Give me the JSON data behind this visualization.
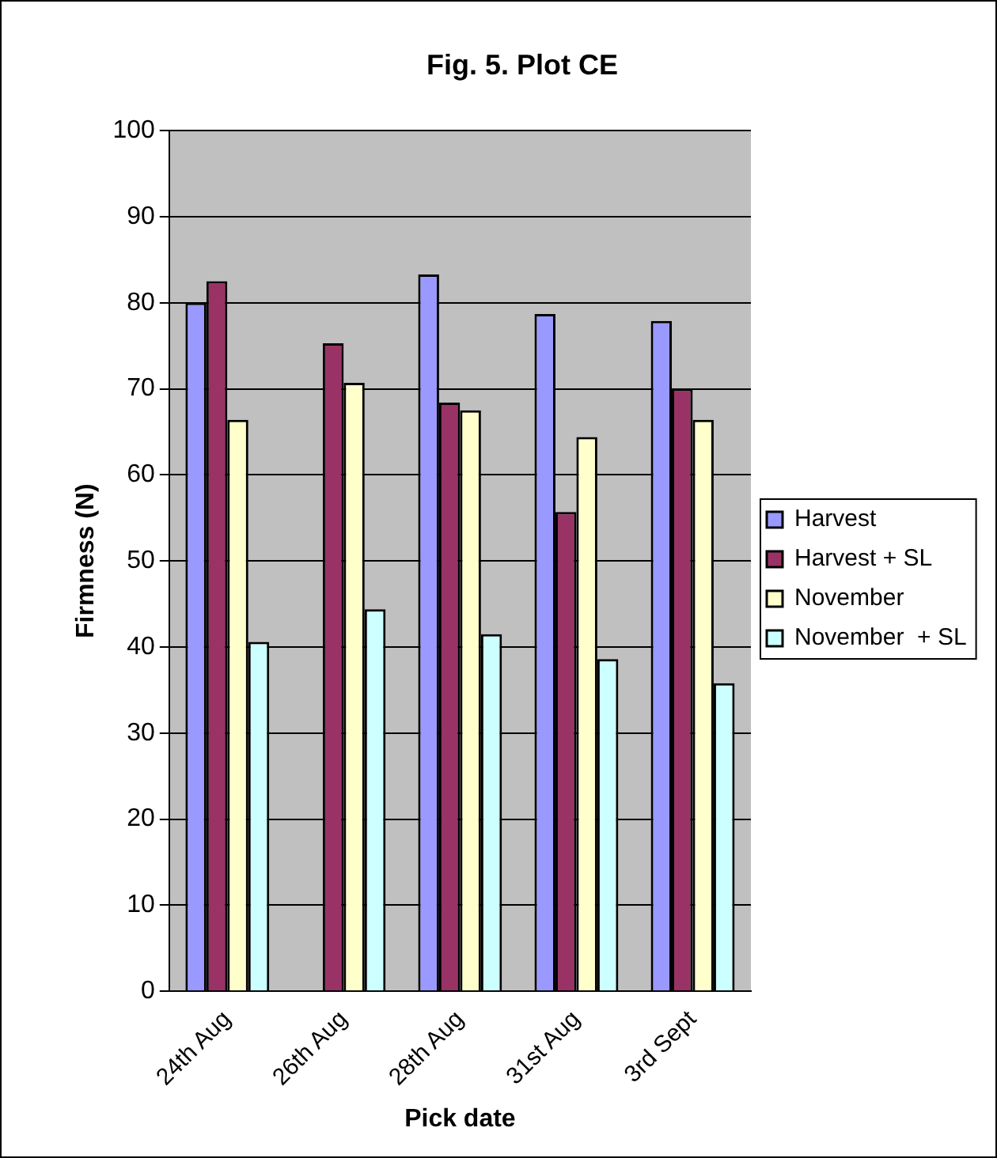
{
  "chart_data": {
    "type": "bar",
    "title": "Fig. 5. Plot CE",
    "xlabel": "Pick date",
    "ylabel": "Firmness (N)",
    "categories": [
      "24th Aug",
      "26th Aug",
      "28th Aug",
      "31st Aug",
      "3rd Sept"
    ],
    "series": [
      {
        "name": "Harvest",
        "color": "#9999ff",
        "values": [
          80,
          null,
          83.3,
          78.7,
          77.9
        ]
      },
      {
        "name": "Harvest + SL",
        "color": "#993366",
        "values": [
          82.5,
          75.3,
          68.4,
          55.7,
          70
        ]
      },
      {
        "name": "November",
        "color": "#ffffcc",
        "values": [
          66.4,
          70.7,
          67.5,
          64.4,
          66.4
        ]
      },
      {
        "name": "November  + SL",
        "color": "#ccffff",
        "values": [
          40.6,
          44.4,
          41.5,
          38.6,
          35.8
        ]
      }
    ],
    "ylim": [
      0,
      100
    ],
    "yticks": [
      0,
      10,
      20,
      30,
      40,
      50,
      60,
      70,
      80,
      90,
      100
    ],
    "grid": "y",
    "legend": "right"
  }
}
